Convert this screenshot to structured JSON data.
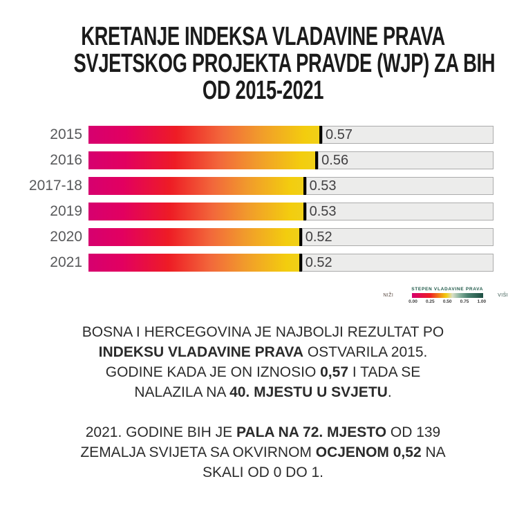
{
  "title": {
    "lines": [
      "KRETANJE INDEKSA VLADAVINE PRAVA",
      "SVJETSKOG PROJEKTA PRAVDE (WJP) ZA BIH",
      "OD 2015-2021"
    ]
  },
  "chart_data": {
    "type": "bar",
    "orientation": "horizontal",
    "categories": [
      "2015",
      "2016",
      "2017-18",
      "2019",
      "2020",
      "2021"
    ],
    "values": [
      0.57,
      0.56,
      0.53,
      0.53,
      0.52,
      0.52
    ],
    "value_labels": [
      "0.57",
      "0.56",
      "0.53",
      "0.53",
      "0.52",
      "0.52"
    ],
    "xlim": [
      0,
      1
    ],
    "grid": false,
    "legend_position": "bottom-right",
    "legend": {
      "title": "STEPEN VLADAVINE PRAVA",
      "low_label": "NIŽI",
      "high_label": "VIŠI",
      "ticks": [
        "0.00",
        "0.25",
        "0.50",
        "0.75",
        "1.00"
      ]
    },
    "colors": {
      "bar_gradient_start": "#d6006f",
      "bar_gradient_mid": "#ee1c25",
      "bar_gradient_end": "#f3cd0e",
      "legend_gradient_high": "#1d4e42",
      "value_marker": "#000000",
      "remainder_fill": "#ececeb",
      "remainder_border": "#ababab",
      "year_label": "#58595b",
      "value_label": "#414042"
    }
  },
  "paragraphs": [
    {
      "lines": [
        [
          {
            "t": "BOSNA I HERCEGOVINA JE NAJBOLJI REZULTAT PO",
            "b": false
          }
        ],
        [
          {
            "t": "INDEKSU VLADAVINE PRAVA",
            "b": true
          },
          {
            "t": " OSTVARILA 2015.",
            "b": false
          }
        ],
        [
          {
            "t": "GODINE KADA JE ON IZNOSIO ",
            "b": false
          },
          {
            "t": "0,57",
            "b": true
          },
          {
            "t": " I TADA SE",
            "b": false
          }
        ],
        [
          {
            "t": "NALAZILA NA ",
            "b": false
          },
          {
            "t": "40. MJESTU U SVJETU",
            "b": true
          },
          {
            "t": ".",
            "b": false
          }
        ]
      ]
    },
    {
      "lines": [
        [
          {
            "t": "2021. GODINE BIH JE ",
            "b": false
          },
          {
            "t": "PALA NA 72. MJESTO",
            "b": true
          },
          {
            "t": " OD 139",
            "b": false
          }
        ],
        [
          {
            "t": "ZEMALJA SVIJETA SA OKVIRNOM ",
            "b": false
          },
          {
            "t": "OCJENOM 0,52",
            "b": true
          },
          {
            "t": " NA",
            "b": false
          }
        ],
        [
          {
            "t": "SKALI OD 0 DO 1.",
            "b": false
          }
        ]
      ]
    }
  ]
}
